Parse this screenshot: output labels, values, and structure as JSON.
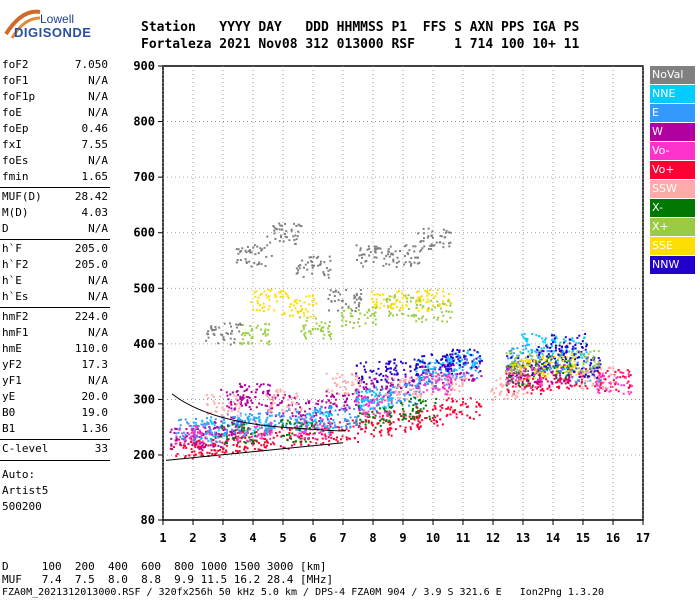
{
  "logo": {
    "line1": "Lowell",
    "line2": "DIGISONDE"
  },
  "header": {
    "line1": "Station   YYYY DAY   DDD HHMMSS P1  FFS S AXN PPS IGA PS",
    "line2": "Fortaleza 2021 Nov08 312 013000 RSF     1 714 100 10+ 11"
  },
  "params": [
    {
      "key": "foF2",
      "value": "7.050"
    },
    {
      "key": "foF1",
      "value": "N/A"
    },
    {
      "key": "foF1p",
      "value": "N/A"
    },
    {
      "key": "foE",
      "value": "N/A"
    },
    {
      "key": "foEp",
      "value": "0.46"
    },
    {
      "key": "fxI",
      "value": "7.55"
    },
    {
      "key": "foEs",
      "value": "N/A"
    },
    {
      "key": "fmin",
      "value": "1.65"
    },
    {
      "key": "MUF(D)",
      "value": "28.42"
    },
    {
      "key": "M(D)",
      "value": "4.03"
    },
    {
      "key": "D",
      "value": "N/A"
    },
    {
      "key": "h`F",
      "value": "205.0"
    },
    {
      "key": "h`F2",
      "value": "205.0"
    },
    {
      "key": "h`E",
      "value": "N/A"
    },
    {
      "key": "h`Es",
      "value": "N/A"
    },
    {
      "key": "hmF2",
      "value": "224.0"
    },
    {
      "key": "hmF1",
      "value": "N/A"
    },
    {
      "key": "hmE",
      "value": "110.0"
    },
    {
      "key": "yF2",
      "value": "17.3"
    },
    {
      "key": "yF1",
      "value": "N/A"
    },
    {
      "key": "yE",
      "value": "20.0"
    },
    {
      "key": "B0",
      "value": "19.0"
    },
    {
      "key": "B1",
      "value": "1.36"
    },
    {
      "key": "C-level",
      "value": "33"
    }
  ],
  "autoscaling": {
    "line1": "Auto:",
    "line2": "Artist5",
    "line3": "500200"
  },
  "legend": [
    {
      "label": "NoVal",
      "color": "#808080"
    },
    {
      "label": "NNE",
      "color": "#00ccff"
    },
    {
      "label": "E",
      "color": "#3399ff"
    },
    {
      "label": "W",
      "color": "#b000a0"
    },
    {
      "label": "Vo-",
      "color": "#ff33cc"
    },
    {
      "label": "Vo+",
      "color": "#ff0033"
    },
    {
      "label": "SSW",
      "color": "#ffaaaa"
    },
    {
      "label": "X-",
      "color": "#007700"
    },
    {
      "label": "X+",
      "color": "#99cc44"
    },
    {
      "label": "SSE",
      "color": "#ffdd00"
    },
    {
      "label": "NNW",
      "color": "#2200cc"
    }
  ],
  "chart_data": {
    "type": "scatter",
    "xlim": [
      1,
      17
    ],
    "ylim": [
      80,
      900
    ],
    "x_ticks": [
      1,
      2,
      3,
      4,
      5,
      6,
      7,
      8,
      9,
      10,
      11,
      12,
      13,
      14,
      15,
      16,
      17
    ],
    "y_ticks": [
      80,
      200,
      300,
      400,
      500,
      600,
      700,
      800,
      900
    ],
    "grid": "dotted",
    "legend_position": "right",
    "series": [
      {
        "color": "#ff0033",
        "points": [
          [
            1.8,
            215
          ],
          [
            2.5,
            218
          ],
          [
            3.2,
            225
          ],
          [
            4,
            228
          ],
          [
            5,
            232
          ],
          [
            6,
            238
          ],
          [
            7,
            245
          ],
          [
            8,
            255
          ],
          [
            9,
            262
          ],
          [
            10,
            272
          ],
          [
            11,
            285
          ],
          [
            13,
            330
          ],
          [
            14,
            335
          ],
          [
            15,
            340
          ],
          [
            16,
            335
          ]
        ]
      },
      {
        "color": "#b000a0",
        "points": [
          [
            1.8,
            230
          ],
          [
            2.5,
            235
          ],
          [
            3,
            250
          ],
          [
            3.5,
            300
          ],
          [
            4,
            310
          ],
          [
            5,
            290
          ],
          [
            6,
            280
          ],
          [
            7,
            300
          ],
          [
            8,
            320
          ],
          [
            9,
            330
          ],
          [
            10,
            345
          ],
          [
            11,
            355
          ],
          [
            13,
            350
          ],
          [
            14,
            345
          ]
        ]
      },
      {
        "color": "#3399ff",
        "points": [
          [
            2,
            250
          ],
          [
            3,
            255
          ],
          [
            4,
            260
          ],
          [
            5,
            265
          ],
          [
            6,
            270
          ],
          [
            7,
            270
          ],
          [
            8,
            300
          ],
          [
            9,
            310
          ],
          [
            10,
            340
          ],
          [
            11,
            360
          ],
          [
            13,
            380
          ],
          [
            14,
            370
          ],
          [
            15,
            350
          ]
        ]
      },
      {
        "color": "#00ccff",
        "points": [
          [
            2.5,
            245
          ],
          [
            4,
            255
          ],
          [
            6,
            262
          ],
          [
            8,
            305
          ],
          [
            10,
            355
          ],
          [
            11,
            370
          ],
          [
            13.5,
            400
          ],
          [
            14.5,
            395
          ]
        ]
      },
      {
        "color": "#2200cc",
        "points": [
          [
            8,
            350
          ],
          [
            9,
            355
          ],
          [
            10,
            365
          ],
          [
            11,
            372
          ],
          [
            13,
            360
          ],
          [
            14,
            380
          ],
          [
            14.5,
            400
          ],
          [
            15,
            360
          ]
        ]
      },
      {
        "color": "#ffaaaa",
        "points": [
          [
            3,
            290
          ],
          [
            5,
            300
          ],
          [
            7,
            330
          ],
          [
            9,
            320
          ],
          [
            10.5,
            330
          ],
          [
            12.5,
            320
          ],
          [
            15.5,
            340
          ]
        ]
      },
      {
        "color": "#007700",
        "points": [
          [
            3.5,
            240
          ],
          [
            5.5,
            245
          ],
          [
            8,
            270
          ],
          [
            9.5,
            285
          ],
          [
            13,
            345
          ],
          [
            14,
            360
          ]
        ]
      },
      {
        "color": "#99cc44",
        "points": [
          [
            4,
            420
          ],
          [
            6,
            430
          ],
          [
            7.5,
            450
          ],
          [
            9,
            470
          ],
          [
            10,
            460
          ],
          [
            13,
            370
          ],
          [
            15,
            370
          ]
        ]
      },
      {
        "color": "#ffdd00",
        "points": [
          [
            4.5,
            480
          ],
          [
            5.5,
            470
          ],
          [
            8.5,
            480
          ],
          [
            10,
            480
          ],
          [
            13.2,
            355
          ],
          [
            14.2,
            365
          ]
        ]
      },
      {
        "color": "#808080",
        "points": [
          [
            3,
            420
          ],
          [
            4,
            560
          ],
          [
            5,
            600
          ],
          [
            6,
            540
          ],
          [
            7,
            480
          ],
          [
            8,
            560
          ],
          [
            9,
            560
          ],
          [
            10,
            590
          ]
        ]
      },
      {
        "color": "#ff33cc",
        "points": [
          [
            2,
            240
          ],
          [
            4,
            245
          ],
          [
            6,
            250
          ],
          [
            8,
            290
          ],
          [
            10,
            330
          ],
          [
            13,
            340
          ],
          [
            16,
            330
          ]
        ]
      }
    ]
  },
  "footer": {
    "line1": "D     100  200  400  600  800 1000 1500 3000 [km]",
    "line2": "MUF   7.4  7.5  8.0  8.8  9.9 11.5 16.2 28.4 [MHz]",
    "line3": "FZA0M_2021312013000.RSF / 320fx256h 50 kHz 5.0 km / DPS-4 FZA0M 904 / 3.9 S 321.6 E   Ion2Png 1.3.20"
  }
}
